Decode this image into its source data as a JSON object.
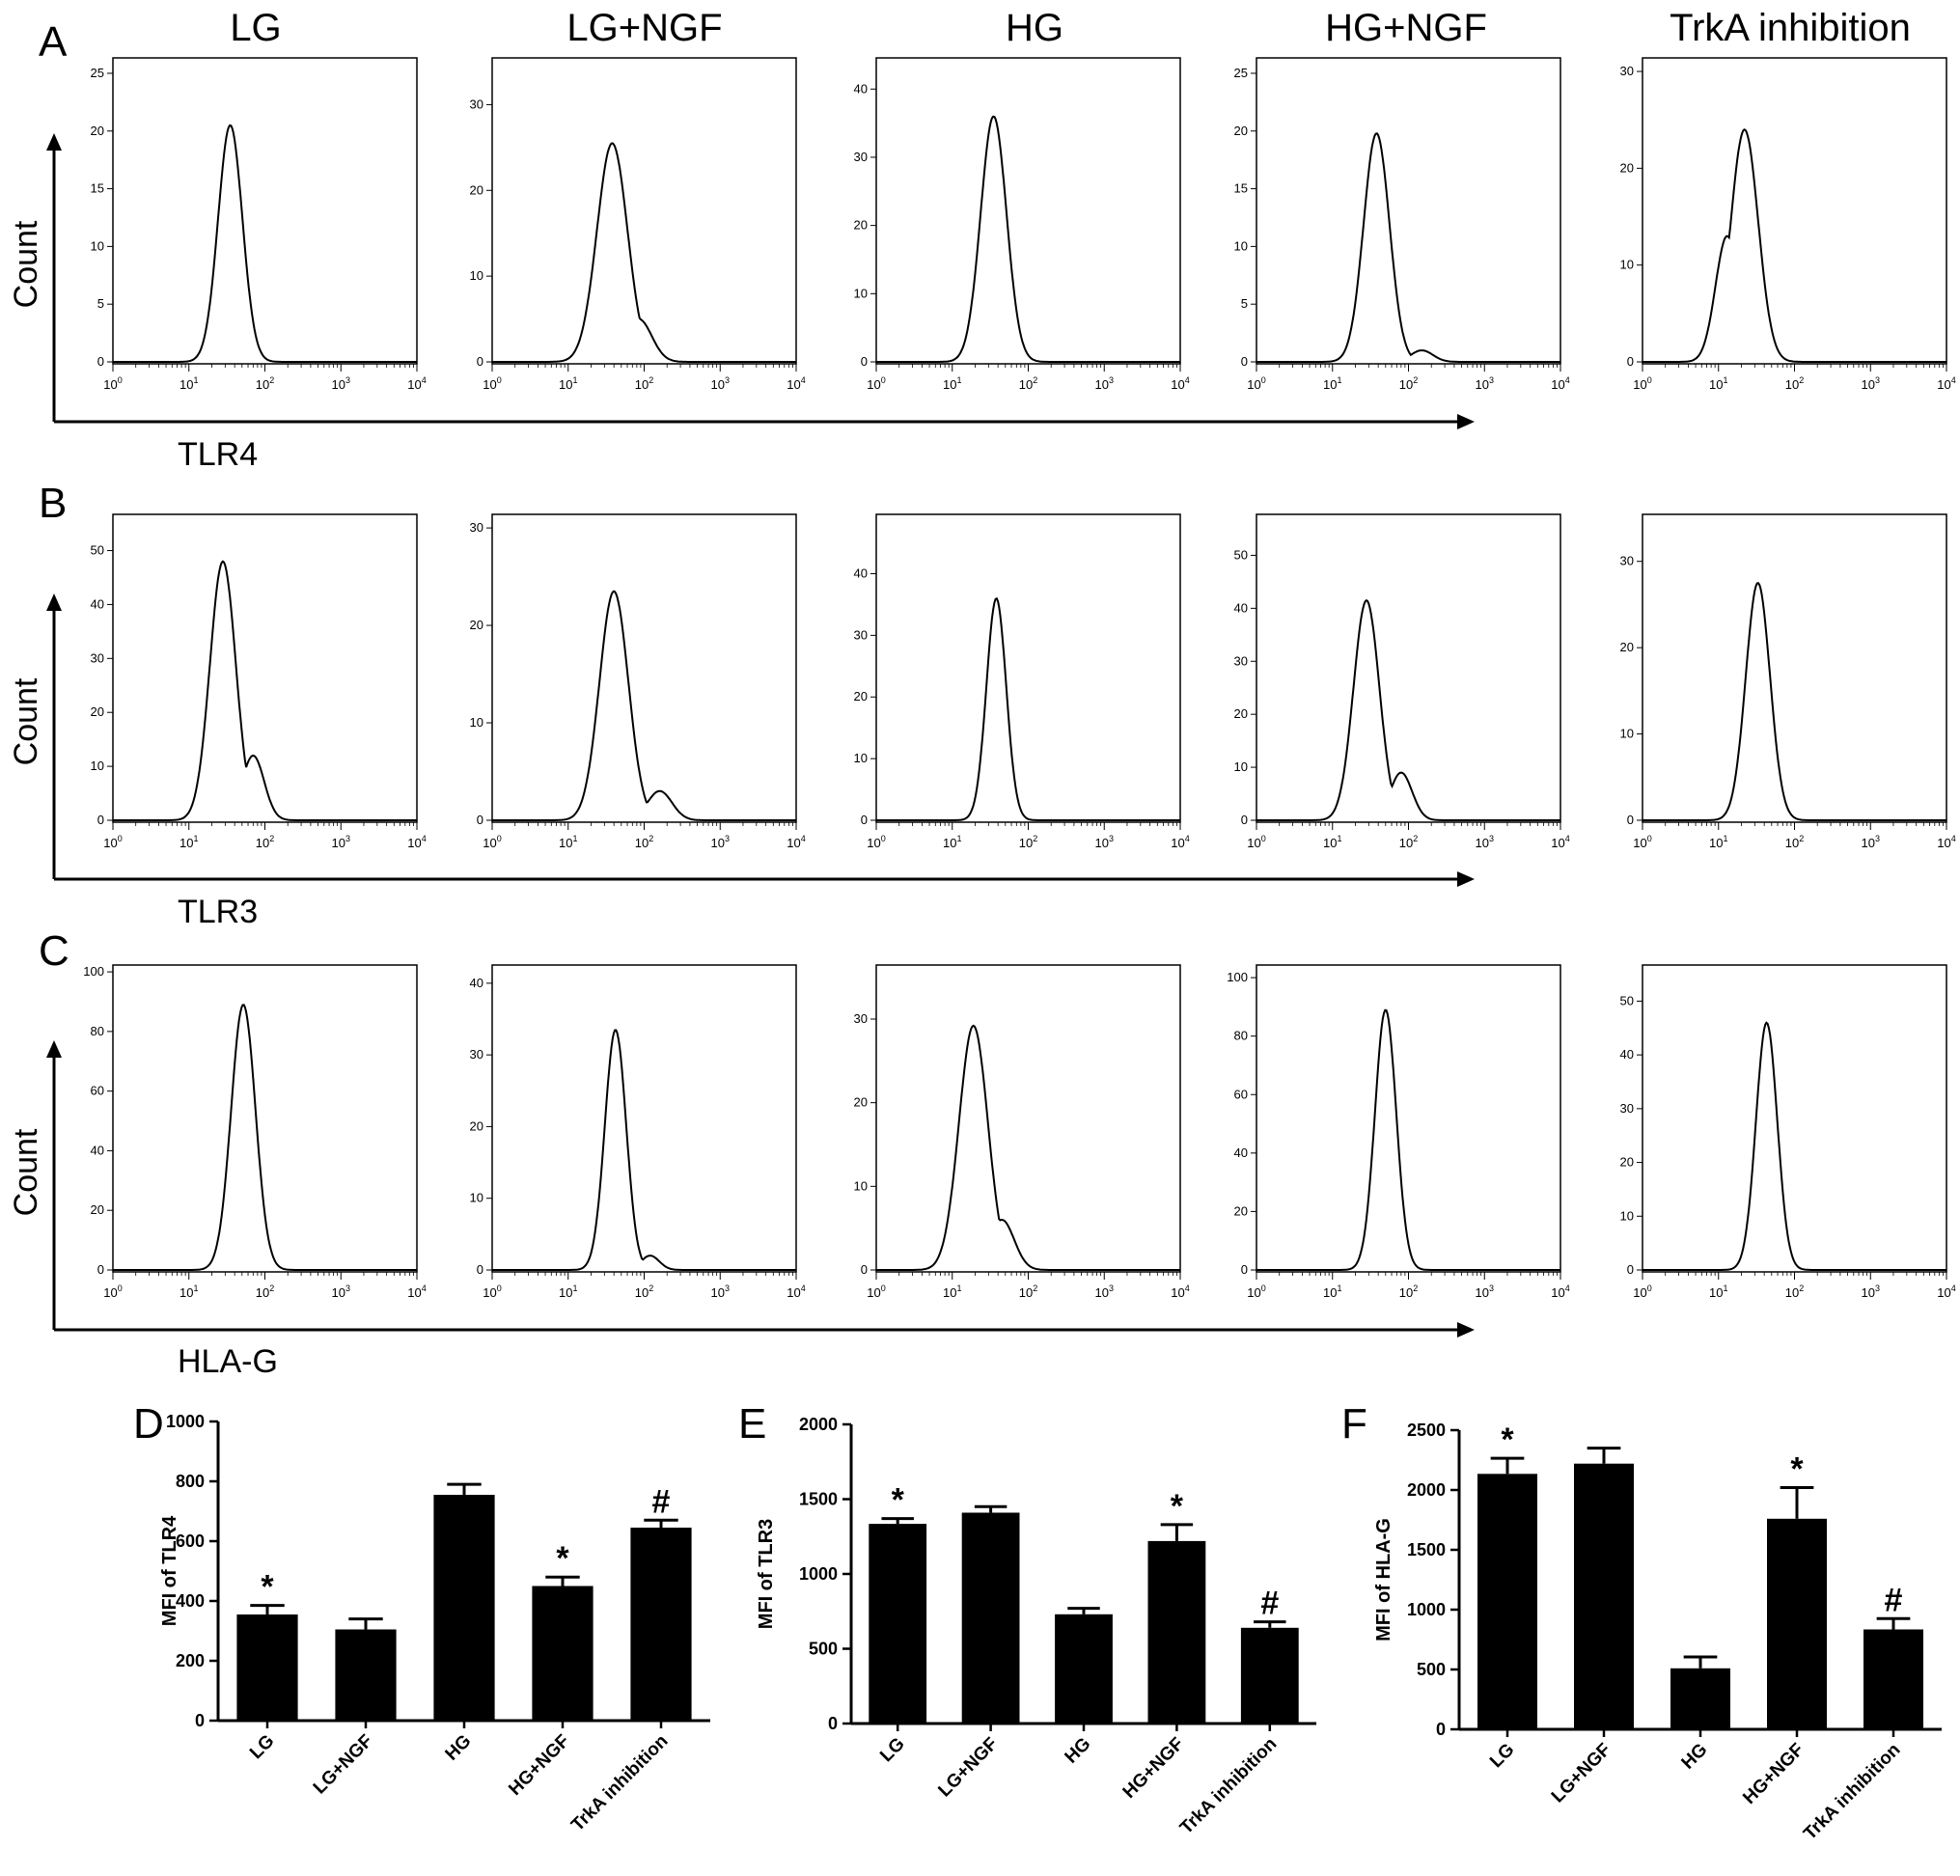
{
  "figure": {
    "column_titles": [
      "LG",
      "LG+NGF",
      "HG",
      "HG+NGF",
      "TrkA inhibition"
    ],
    "panel_letters": [
      "A",
      "B",
      "C",
      "D",
      "E",
      "F"
    ]
  },
  "chart_data": [
    {
      "panel": "A",
      "type": "histogram-grid",
      "row_y_label": "Count",
      "row_x_label": "TLR4",
      "x_ticks": [
        "10^0",
        "10^1",
        "10^2",
        "10^3",
        "10^4"
      ],
      "x_scale": "log",
      "xlim": [
        1,
        10000
      ],
      "panels": [
        {
          "title": "LG",
          "ylim": [
            0,
            26
          ],
          "y_ticks": [
            0,
            5,
            10,
            15,
            20,
            25
          ],
          "peak_x": 35,
          "peak_y": 20.5,
          "width": 0.16,
          "shoulder": null
        },
        {
          "title": "LG+NGF",
          "ylim": [
            0,
            35
          ],
          "y_ticks": [
            0,
            10,
            20,
            30
          ],
          "peak_x": 38,
          "peak_y": 25.5,
          "width": 0.2,
          "shoulder": {
            "x": 85,
            "y": 5
          }
        },
        {
          "title": "HG",
          "ylim": [
            0,
            44
          ],
          "y_ticks": [
            0,
            10,
            20,
            30,
            40
          ],
          "peak_x": 35,
          "peak_y": 36,
          "width": 0.17,
          "shoulder": null
        },
        {
          "title": "HG+NGF",
          "ylim": [
            0,
            26
          ],
          "y_ticks": [
            0,
            5,
            10,
            15,
            20,
            25
          ],
          "peak_x": 38,
          "peak_y": 19.8,
          "width": 0.17,
          "shoulder": {
            "x": 150,
            "y": 1
          }
        },
        {
          "title": "TrkA inhibition",
          "ylim": [
            0,
            31
          ],
          "y_ticks": [
            0,
            10,
            20,
            30
          ],
          "peak_x": 22,
          "peak_y": 24,
          "width": 0.18,
          "shoulder": {
            "x": 13,
            "y": 13
          }
        }
      ]
    },
    {
      "panel": "B",
      "type": "histogram-grid",
      "row_y_label": "Count",
      "row_x_label": "TLR3",
      "x_ticks": [
        "10^0",
        "10^1",
        "10^2",
        "10^3",
        "10^4"
      ],
      "x_scale": "log",
      "xlim": [
        1,
        10000
      ],
      "panels": [
        {
          "title": "LG",
          "ylim": [
            0,
            56
          ],
          "y_ticks": [
            0,
            10,
            20,
            30,
            40,
            50
          ],
          "peak_x": 28,
          "peak_y": 48,
          "width": 0.17,
          "shoulder": {
            "x": 70,
            "y": 12
          }
        },
        {
          "title": "LG+NGF",
          "ylim": [
            0,
            31
          ],
          "y_ticks": [
            0,
            10,
            20,
            30
          ],
          "peak_x": 40,
          "peak_y": 23.5,
          "width": 0.19,
          "shoulder": {
            "x": 160,
            "y": 3
          }
        },
        {
          "title": "HG",
          "ylim": [
            0,
            49
          ],
          "y_ticks": [
            0,
            10,
            20,
            30,
            40
          ],
          "peak_x": 38,
          "peak_y": 36,
          "width": 0.13,
          "shoulder": null
        },
        {
          "title": "HG+NGF",
          "ylim": [
            0,
            57
          ],
          "y_ticks": [
            0,
            10,
            20,
            30,
            40,
            50
          ],
          "peak_x": 28,
          "peak_y": 41.5,
          "width": 0.17,
          "shoulder": {
            "x": 80,
            "y": 9
          }
        },
        {
          "title": "TrkA inhibition",
          "ylim": [
            0,
            35
          ],
          "y_ticks": [
            0,
            10,
            20,
            30
          ],
          "peak_x": 33,
          "peak_y": 27.5,
          "width": 0.16,
          "shoulder": null
        }
      ]
    },
    {
      "panel": "C",
      "type": "histogram-grid",
      "row_y_label": "Count",
      "row_x_label": "HLA-G",
      "x_ticks": [
        "10^0",
        "10^1",
        "10^2",
        "10^3",
        "10^4"
      ],
      "x_scale": "log",
      "xlim": [
        1,
        10000
      ],
      "panels": [
        {
          "title": "LG",
          "ylim": [
            0,
            101
          ],
          "y_ticks": [
            0,
            20,
            40,
            60,
            80,
            100
          ],
          "peak_x": 52,
          "peak_y": 89,
          "width": 0.16,
          "shoulder": null
        },
        {
          "title": "LG+NGF",
          "ylim": [
            0,
            42
          ],
          "y_ticks": [
            0,
            10,
            20,
            30,
            40
          ],
          "peak_x": 42,
          "peak_y": 33.5,
          "width": 0.14,
          "shoulder": {
            "x": 120,
            "y": 2
          }
        },
        {
          "title": "HG",
          "ylim": [
            0,
            36
          ],
          "y_ticks": [
            0,
            10,
            20,
            30
          ],
          "peak_x": 19,
          "peak_y": 29.2,
          "width": 0.19,
          "shoulder": {
            "x": 45,
            "y": 6
          }
        },
        {
          "title": "HG+NGF",
          "ylim": [
            0,
            103
          ],
          "y_ticks": [
            0,
            20,
            40,
            60,
            80,
            100
          ],
          "peak_x": 50,
          "peak_y": 89,
          "width": 0.14,
          "shoulder": null
        },
        {
          "title": "TrkA inhibition",
          "ylim": [
            0,
            56
          ],
          "y_ticks": [
            0,
            10,
            20,
            30,
            40,
            50
          ],
          "peak_x": 43,
          "peak_y": 46,
          "width": 0.14,
          "shoulder": null
        }
      ]
    },
    {
      "panel": "D",
      "type": "bar",
      "title": "",
      "ylabel": "MFI of TLR4",
      "xlabel": "",
      "categories": [
        "LG",
        "LG+NGF",
        "HG",
        "HG+NGF",
        "TrkA inhibition"
      ],
      "values": [
        355,
        305,
        755,
        450,
        645
      ],
      "errors": [
        30,
        35,
        35,
        30,
        25
      ],
      "annotations": [
        "*",
        "",
        "",
        "*",
        "#"
      ],
      "ylim": [
        0,
        1000
      ],
      "y_ticks": [
        0,
        200,
        400,
        600,
        800,
        1000
      ]
    },
    {
      "panel": "E",
      "type": "bar",
      "title": "",
      "ylabel": "MFI of TLR3",
      "xlabel": "",
      "categories": [
        "LG",
        "LG+NGF",
        "HG",
        "HG+NGF",
        "TrkA inhibition"
      ],
      "values": [
        1335,
        1410,
        730,
        1220,
        640
      ],
      "errors": [
        35,
        40,
        40,
        110,
        40
      ],
      "annotations": [
        "*",
        "",
        "",
        "*",
        "#"
      ],
      "ylim": [
        0,
        2000
      ],
      "y_ticks": [
        0,
        500,
        1000,
        1500,
        2000
      ]
    },
    {
      "panel": "F",
      "type": "bar",
      "title": "",
      "ylabel": "MFI of HLA-G",
      "xlabel": "",
      "categories": [
        "LG",
        "LG+NGF",
        "HG",
        "HG+NGF",
        "TrkA inhibition"
      ],
      "values": [
        2135,
        2220,
        510,
        1760,
        835
      ],
      "errors": [
        130,
        130,
        95,
        260,
        90
      ],
      "annotations": [
        "*",
        "",
        "",
        "*",
        "#"
      ],
      "ylim": [
        0,
        2500
      ],
      "y_ticks": [
        0,
        500,
        1000,
        1500,
        2000,
        2500
      ]
    }
  ]
}
